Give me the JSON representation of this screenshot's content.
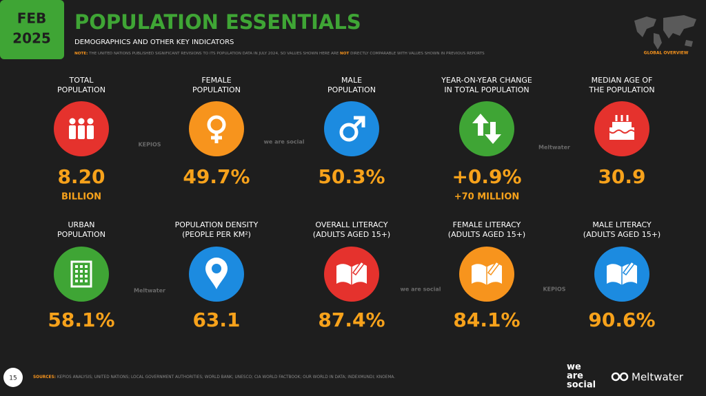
{
  "badge": {
    "month": "FEB",
    "year": "2025"
  },
  "header": {
    "title": "POPULATION ESSENTIALS",
    "subtitle": "DEMOGRAPHICS AND OTHER KEY INDICATORS",
    "note_label": "NOTE:",
    "note_before": "THE UNITED NATIONS PUBLISHED SIGNIFICANT REVISIONS TO ITS POPULATION DATA IN JULY 2024, SO VALUES SHOWN HERE ARE",
    "note_emphasis": "NOT",
    "note_after": "DIRECTLY COMPARABLE WITH VALUES SHOWN IN PREVIOUS REPORTS",
    "map_caption": "GLOBAL OVERVIEW"
  },
  "tiles": [
    {
      "label": [
        "TOTAL",
        "POPULATION"
      ],
      "icon": "people",
      "color": "#e5322d",
      "value": "8.20",
      "sub": "BILLION"
    },
    {
      "label": [
        "FEMALE",
        "POPULATION"
      ],
      "icon": "female",
      "color": "#f7941d",
      "value": "49.7%"
    },
    {
      "label": [
        "MALE",
        "POPULATION"
      ],
      "icon": "male",
      "color": "#1c8be0",
      "value": "50.3%"
    },
    {
      "label": [
        "YEAR-ON-YEAR CHANGE",
        "IN TOTAL POPULATION"
      ],
      "icon": "arrows",
      "color": "#3fa535",
      "value": "+0.9%",
      "sub": "+70 MILLION"
    },
    {
      "label": [
        "MEDIAN AGE OF",
        "THE POPULATION"
      ],
      "icon": "cake",
      "color": "#e5322d",
      "value": "30.9"
    },
    {
      "label": [
        "URBAN",
        "POPULATION"
      ],
      "icon": "building",
      "color": "#3fa535",
      "value": "58.1%"
    },
    {
      "label": [
        "POPULATION DENSITY",
        "(PEOPLE PER KM²)"
      ],
      "icon": "pin",
      "color": "#1c8be0",
      "value": "63.1"
    },
    {
      "label": [
        "OVERALL LITERACY",
        "(ADULTS AGED 15+)"
      ],
      "icon": "book",
      "color": "#e5322d",
      "value": "87.4%"
    },
    {
      "label": [
        "FEMALE LITERACY",
        "(ADULTS AGED 15+)"
      ],
      "icon": "book",
      "color": "#f7941d",
      "value": "84.1%"
    },
    {
      "label": [
        "MALE LITERACY",
        "(ADULTS AGED 15+)"
      ],
      "icon": "book",
      "color": "#1c8be0",
      "value": "90.6%"
    }
  ],
  "watermarks": [
    "KEPIOS",
    "we are social",
    "Meltwater",
    "Meltwater",
    "we are social",
    "KEPIOS"
  ],
  "footer": {
    "page": "15",
    "sources_label": "SOURCES:",
    "sources": "KEPIOS ANALYSIS; UNITED NATIONS; LOCAL GOVERNMENT AUTHORITIES; WORLD BANK; UNESCO; CIA WORLD FACTBOOK; OUR WORLD IN DATA; INDEXMUNDI; KNOEMA.",
    "logo_1": [
      "we",
      "are",
      "social"
    ],
    "logo_2": "Meltwater"
  }
}
